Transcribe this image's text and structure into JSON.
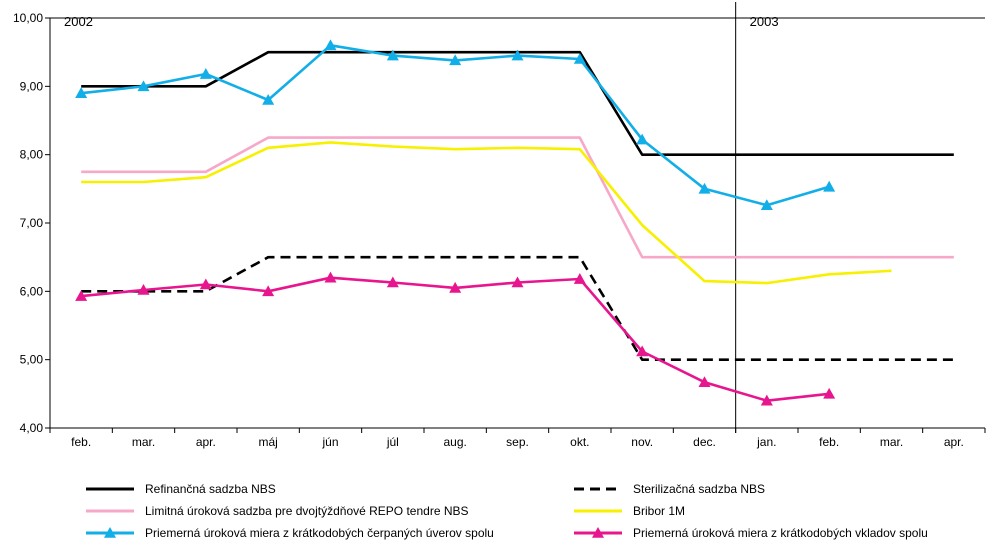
{
  "chart_data": {
    "type": "line",
    "categories": [
      "feb.",
      "mar.",
      "apr.",
      "máj",
      "jún",
      "júl",
      "aug.",
      "sep.",
      "okt.",
      "nov.",
      "dec.",
      "jan.",
      "feb.",
      "mar.",
      "apr."
    ],
    "ylim": [
      4.0,
      10.0
    ],
    "yticks": [
      "4,00",
      "5,00",
      "6,00",
      "7,00",
      "8,00",
      "9,00",
      "10,00"
    ],
    "ytick_values": [
      4,
      5,
      6,
      7,
      8,
      9,
      10
    ],
    "year_labels": [
      {
        "label": "2002",
        "at_index": 0
      },
      {
        "label": "2003",
        "at_index": 11
      }
    ],
    "year_divider_index": 11,
    "grid": false,
    "legend_position": "bottom",
    "series": [
      {
        "name": "Refinančná sadzba NBS",
        "color": "#000000",
        "style": "solid",
        "marker": "none",
        "points": [
          [
            0,
            9.0
          ],
          [
            2,
            9.0
          ],
          [
            3,
            9.5
          ],
          [
            8,
            9.5
          ],
          [
            9,
            8.0
          ],
          [
            14,
            8.0
          ]
        ]
      },
      {
        "name": "Sterilizačná sadzba NBS",
        "color": "#000000",
        "style": "dashed",
        "marker": "none",
        "points": [
          [
            0,
            6.0
          ],
          [
            2,
            6.0
          ],
          [
            3,
            6.5
          ],
          [
            8,
            6.5
          ],
          [
            9,
            5.0
          ],
          [
            14,
            5.0
          ]
        ]
      },
      {
        "name": "Limitná úroková sadzba pre dvojtýždňové REPO tendre NBS",
        "color": "#f7a8c8",
        "style": "solid",
        "marker": "none",
        "points": [
          [
            0,
            7.75
          ],
          [
            2,
            7.75
          ],
          [
            3,
            8.25
          ],
          [
            8,
            8.25
          ],
          [
            9,
            6.5
          ],
          [
            14,
            6.5
          ]
        ]
      },
      {
        "name": "Bribor 1M",
        "color": "#f7f000",
        "style": "solid",
        "marker": "none",
        "points": [
          [
            0,
            7.6
          ],
          [
            1,
            7.6
          ],
          [
            2,
            7.67
          ],
          [
            3,
            8.1
          ],
          [
            4,
            8.18
          ],
          [
            5,
            8.12
          ],
          [
            6,
            8.08
          ],
          [
            7,
            8.1
          ],
          [
            8,
            8.08
          ],
          [
            9,
            6.97
          ],
          [
            10,
            6.15
          ],
          [
            11,
            6.12
          ],
          [
            12,
            6.25
          ],
          [
            13,
            6.3
          ]
        ]
      },
      {
        "name": "Priemerná úroková miera z krátkodobých čerpaných úverov spolu",
        "color": "#12aee8",
        "style": "solid",
        "marker": "triangle",
        "points": [
          [
            0,
            8.9
          ],
          [
            1,
            9.0
          ],
          [
            2,
            9.18
          ],
          [
            3,
            8.8
          ],
          [
            4,
            9.6
          ],
          [
            5,
            9.45
          ],
          [
            6,
            9.38
          ],
          [
            7,
            9.45
          ],
          [
            8,
            9.4
          ],
          [
            9,
            8.22
          ],
          [
            10,
            7.5
          ],
          [
            11,
            7.26
          ],
          [
            12,
            7.53
          ]
        ]
      },
      {
        "name": "Priemerná úroková miera z krátkodobých vkladov spolu",
        "color": "#e8168e",
        "style": "solid",
        "marker": "triangle",
        "points": [
          [
            0,
            5.93
          ],
          [
            1,
            6.02
          ],
          [
            2,
            6.1
          ],
          [
            3,
            6.0
          ],
          [
            4,
            6.2
          ],
          [
            5,
            6.13
          ],
          [
            6,
            6.05
          ],
          [
            7,
            6.13
          ],
          [
            8,
            6.18
          ],
          [
            9,
            5.12
          ],
          [
            10,
            4.67
          ],
          [
            11,
            4.4
          ],
          [
            12,
            4.5
          ]
        ]
      }
    ]
  }
}
